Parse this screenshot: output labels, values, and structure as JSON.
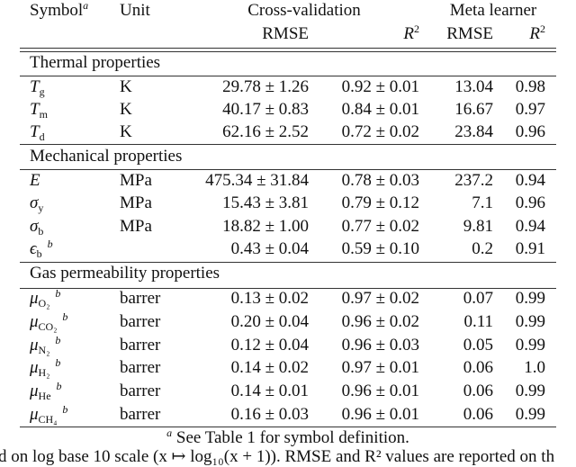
{
  "header": {
    "symbol": "Symbol",
    "symbol_note": "a",
    "unit": "Unit",
    "cross_validation": "Cross-validation",
    "meta_learner": "Meta learner",
    "cv_rmse": "RMSE",
    "cv_r2": "R",
    "ml_rmse": "RMSE",
    "ml_r2": "R",
    "r2_exp": "2"
  },
  "sections": [
    {
      "title": "Thermal properties",
      "rows": [
        {
          "symbol": "T",
          "sub": "g",
          "note": "",
          "unit": "K",
          "cv_rmse": "29.78 ± 1.26",
          "cv_r2": "0.92 ± 0.01",
          "ml_rmse": "13.04",
          "ml_r2": "0.98"
        },
        {
          "symbol": "T",
          "sub": "m",
          "note": "",
          "unit": "K",
          "cv_rmse": "40.17 ± 0.83",
          "cv_r2": "0.84 ± 0.01",
          "ml_rmse": "16.67",
          "ml_r2": "0.97"
        },
        {
          "symbol": "T",
          "sub": "d",
          "note": "",
          "unit": "K",
          "cv_rmse": "62.16 ± 2.52",
          "cv_r2": "0.72 ± 0.02",
          "ml_rmse": "23.84",
          "ml_r2": "0.96"
        }
      ]
    },
    {
      "title": "Mechanical properties",
      "rows": [
        {
          "symbol": "E",
          "sub": "",
          "note": "",
          "unit": "MPa",
          "cv_rmse": "475.34 ± 31.84",
          "cv_r2": "0.78 ± 0.03",
          "ml_rmse": "237.2",
          "ml_r2": "0.94"
        },
        {
          "symbol": "σ",
          "sub": "y",
          "note": "",
          "unit": "MPa",
          "cv_rmse": "15.43 ± 3.81",
          "cv_r2": "0.79 ± 0.12",
          "ml_rmse": "7.1",
          "ml_r2": "0.96"
        },
        {
          "symbol": "σ",
          "sub": "b",
          "note": "",
          "unit": "MPa",
          "cv_rmse": "18.82 ± 1.00",
          "cv_r2": "0.77 ± 0.02",
          "ml_rmse": "9.81",
          "ml_r2": "0.94"
        },
        {
          "symbol": "ϵ",
          "sub": "b",
          "note": "b",
          "unit": "",
          "cv_rmse": "0.43 ± 0.04",
          "cv_r2": "0.59 ± 0.10",
          "ml_rmse": "0.2",
          "ml_r2": "0.91"
        }
      ]
    },
    {
      "title": "Gas permeability properties",
      "rows": [
        {
          "symbol": "μ",
          "sub": "O₂",
          "note": "b",
          "unit": "barrer",
          "cv_rmse": "0.13 ± 0.02",
          "cv_r2": "0.97 ± 0.02",
          "ml_rmse": "0.07",
          "ml_r2": "0.99"
        },
        {
          "symbol": "μ",
          "sub": "CO₂",
          "note": "b",
          "unit": "barrer",
          "cv_rmse": "0.20 ± 0.04",
          "cv_r2": "0.96 ± 0.02",
          "ml_rmse": "0.11",
          "ml_r2": "0.99"
        },
        {
          "symbol": "μ",
          "sub": "N₂",
          "note": "b",
          "unit": "barrer",
          "cv_rmse": "0.12 ± 0.04",
          "cv_r2": "0.96 ± 0.03",
          "ml_rmse": "0.05",
          "ml_r2": "0.99"
        },
        {
          "symbol": "μ",
          "sub": "H₂",
          "note": "b",
          "unit": "barrer",
          "cv_rmse": "0.14 ± 0.02",
          "cv_r2": "0.97 ± 0.01",
          "ml_rmse": "0.06",
          "ml_r2": "1.0"
        },
        {
          "symbol": "μ",
          "sub": "He",
          "note": "b",
          "unit": "barrer",
          "cv_rmse": "0.14 ± 0.01",
          "cv_r2": "0.96 ± 0.01",
          "ml_rmse": "0.06",
          "ml_r2": "0.99"
        },
        {
          "symbol": "μ",
          "sub": "CH₄",
          "note": "b",
          "unit": "barrer",
          "cv_rmse": "0.16 ± 0.03",
          "cv_r2": "0.96 ± 0.01",
          "ml_rmse": "0.06",
          "ml_r2": "0.99"
        }
      ]
    }
  ],
  "footnote": {
    "mark": "a",
    "text": "See Table 1 for symbol definition."
  },
  "caption_fragment": "d on log base 10 scale (x ↦ log₁₀(x + 1)). RMSE and R² values are reported on th"
}
